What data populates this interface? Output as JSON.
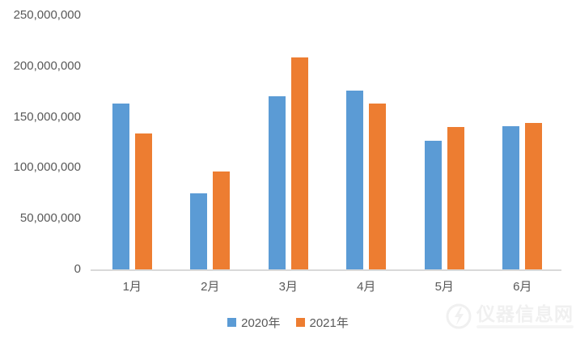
{
  "chart_data": {
    "type": "bar",
    "categories": [
      "1月",
      "2月",
      "3月",
      "4月",
      "5月",
      "6月"
    ],
    "series": [
      {
        "name": "2020年",
        "color": "#5B9BD5",
        "values": [
          163000000,
          75000000,
          170000000,
          176000000,
          127000000,
          141000000
        ]
      },
      {
        "name": "2021年",
        "color": "#ED7D31",
        "values": [
          134000000,
          96000000,
          209000000,
          163000000,
          140000000,
          144000000
        ]
      }
    ],
    "ylim": [
      0,
      250000000
    ],
    "yticks": [
      {
        "value": 0,
        "label": "0"
      },
      {
        "value": 50000000,
        "label": "50,000,000"
      },
      {
        "value": 100000000,
        "label": "100,000,000"
      },
      {
        "value": 150000000,
        "label": "150,000,000"
      },
      {
        "value": 200000000,
        "label": "200,000,000"
      },
      {
        "value": 250000000,
        "label": "250,000,000"
      }
    ],
    "grid": false,
    "legend_position": "bottom"
  },
  "colors": {
    "tick_text": "#595959",
    "axis_line": "#d9d9d9",
    "background": "#ffffff",
    "watermark": "#f0f0f0",
    "watermark_subline": "#f5f5f5"
  },
  "watermark": {
    "text": "仪器信息网"
  }
}
